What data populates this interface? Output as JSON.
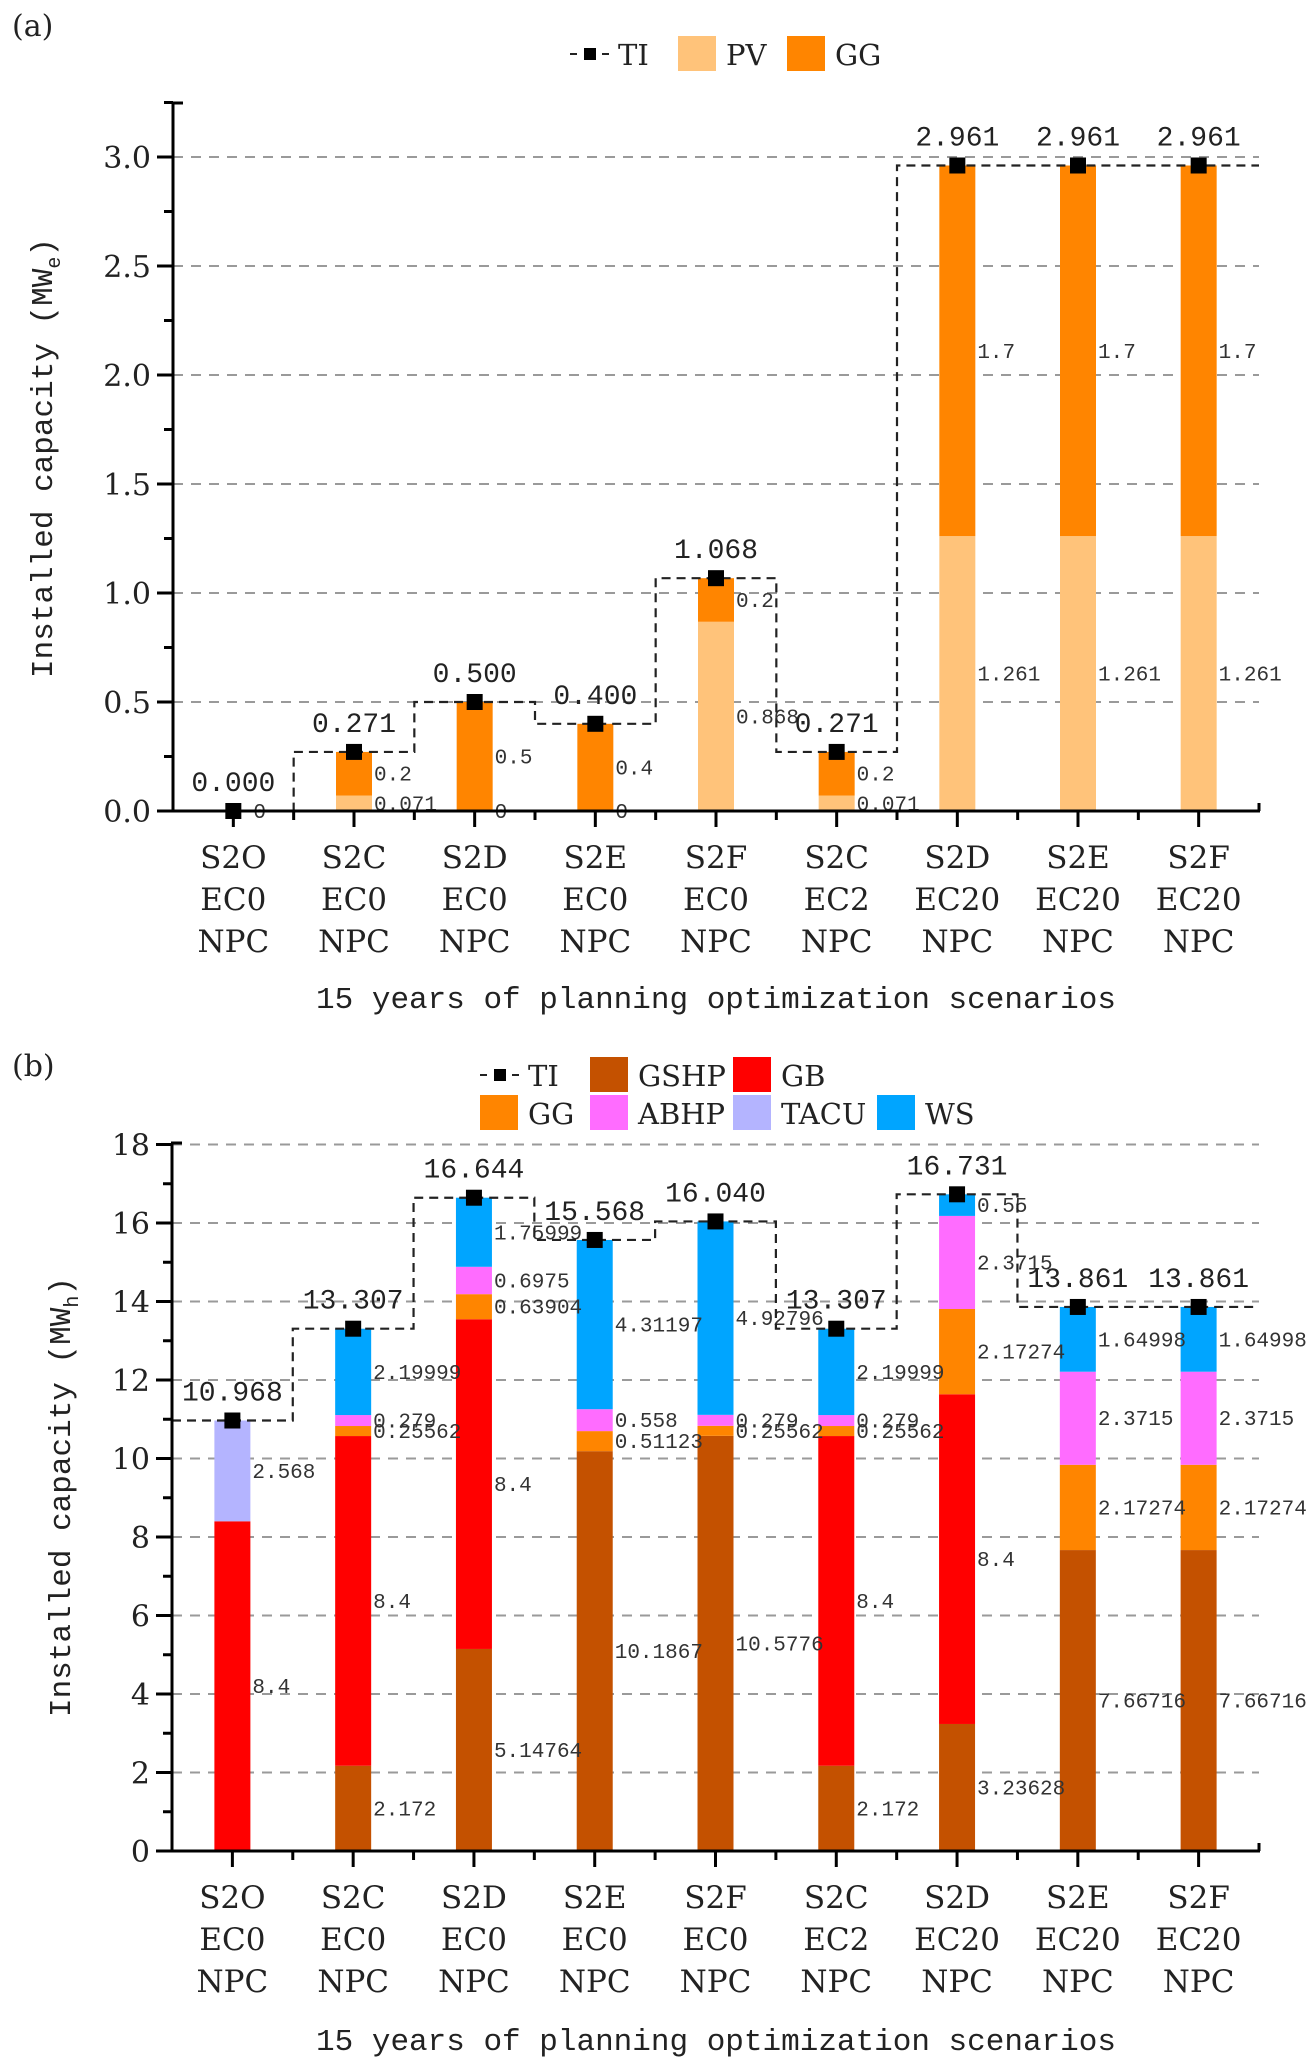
{
  "chart_data": [
    {
      "panel": "(a)",
      "type": "bar",
      "stacked": true,
      "title": "",
      "xlabel": "15 years of planning optimization scenarios",
      "ylabel": "Installed capacity (MW",
      "ylabel_sub": "e",
      "ylabel_close": ")",
      "ylim": [
        0,
        3.25
      ],
      "yticks": [
        0.0,
        0.5,
        1.0,
        1.5,
        2.0,
        2.5,
        3.0
      ],
      "ytick_labels": [
        "0.0",
        "0.5",
        "1.0",
        "1.5",
        "2.0",
        "2.5",
        "3.0"
      ],
      "grid": true,
      "legend_position": "top-center",
      "categories": [
        [
          "S2O",
          "EC0",
          "NPC"
        ],
        [
          "S2C",
          "EC0",
          "NPC"
        ],
        [
          "S2D",
          "EC0",
          "NPC"
        ],
        [
          "S2E",
          "EC0",
          "NPC"
        ],
        [
          "S2F",
          "EC0",
          "NPC"
        ],
        [
          "S2C",
          "EC2",
          "NPC"
        ],
        [
          "S2D",
          "EC20",
          "NPC"
        ],
        [
          "S2E",
          "EC20",
          "NPC"
        ],
        [
          "S2F",
          "EC20",
          "NPC"
        ]
      ],
      "series": [
        {
          "name": "PV",
          "color": "#FFC37A",
          "values": [
            0,
            0.071,
            0,
            0,
            0.868,
            0.071,
            1.261,
            1.261,
            1.261
          ],
          "labels": [
            "",
            "0.071",
            "0",
            "0",
            "0.868",
            "0.071",
            "1.261",
            "1.261",
            "1.261"
          ]
        },
        {
          "name": "GG",
          "color": "#FF8500",
          "values": [
            0,
            0.2,
            0.5,
            0.4,
            0.2,
            0.2,
            1.7,
            1.7,
            1.7
          ],
          "labels": [
            "0",
            "0.2",
            "0.5",
            "0.4",
            "0.2",
            "0.2",
            "1.7",
            "1.7",
            "1.7"
          ]
        }
      ],
      "line": {
        "name": "TI",
        "style": "dashed-step",
        "marker": "square",
        "color": "#000000",
        "values": [
          0.0,
          0.271,
          0.5,
          0.4,
          1.068,
          0.271,
          2.961,
          2.961,
          2.961
        ],
        "labels": [
          "0.000",
          "0.271",
          "0.500",
          "0.400",
          "1.068",
          "0.271",
          "2.961",
          "2.961",
          "2.961"
        ]
      },
      "legend": [
        {
          "name": "TI",
          "kind": "line"
        },
        {
          "name": "PV",
          "kind": "swatch",
          "color": "#FFC37A"
        },
        {
          "name": "GG",
          "kind": "swatch",
          "color": "#FF8500"
        }
      ]
    },
    {
      "panel": "(b)",
      "type": "bar",
      "stacked": true,
      "title": "",
      "xlabel": "15 years of planning optimization scenarios",
      "ylabel": "Installed capacity (MW",
      "ylabel_sub": "h",
      "ylabel_close": ")",
      "ylim": [
        0,
        18
      ],
      "yticks": [
        0,
        2,
        4,
        6,
        8,
        10,
        12,
        14,
        16,
        18
      ],
      "ytick_labels": [
        "0",
        "2",
        "4",
        "6",
        "8",
        "10",
        "12",
        "14",
        "16",
        "18"
      ],
      "grid": true,
      "legend_position": "top-center",
      "categories": [
        [
          "S2O",
          "EC0",
          "NPC"
        ],
        [
          "S2C",
          "EC0",
          "NPC"
        ],
        [
          "S2D",
          "EC0",
          "NPC"
        ],
        [
          "S2E",
          "EC0",
          "NPC"
        ],
        [
          "S2F",
          "EC0",
          "NPC"
        ],
        [
          "S2C",
          "EC2",
          "NPC"
        ],
        [
          "S2D",
          "EC20",
          "NPC"
        ],
        [
          "S2E",
          "EC20",
          "NPC"
        ],
        [
          "S2F",
          "EC20",
          "NPC"
        ]
      ],
      "series": [
        {
          "name": "GSHP",
          "color": "#C45100",
          "values": [
            0,
            2.172,
            5.14764,
            10.1867,
            10.5776,
            2.172,
            3.23628,
            7.66716,
            7.66716
          ],
          "labels": [
            "",
            "2.172",
            "5.14764",
            "10.1867",
            "10.5776",
            "2.172",
            "3.23628",
            "7.66716",
            "7.66716"
          ]
        },
        {
          "name": "GB",
          "color": "#FF0000",
          "values": [
            8.4,
            8.4,
            8.4,
            0,
            0,
            8.4,
            8.4,
            0,
            0
          ],
          "labels": [
            "8.4",
            "8.4",
            "8.4",
            "",
            "",
            "8.4",
            "8.4",
            "",
            ""
          ]
        },
        {
          "name": "GG",
          "color": "#FF8500",
          "values": [
            0,
            0.25562,
            0.63904,
            0.51123,
            0.25562,
            0.25562,
            2.17274,
            2.17274,
            2.17274
          ],
          "labels": [
            "",
            "0.25562",
            "0.63904",
            "0.51123",
            "0.25562",
            "0.25562",
            "2.17274",
            "2.17274",
            "2.17274"
          ]
        },
        {
          "name": "ABHP",
          "color": "#FF6CFF",
          "values": [
            0,
            0.279,
            0.6975,
            0.558,
            0.279,
            0.279,
            2.3715,
            2.3715,
            2.3715
          ],
          "labels": [
            "",
            "0.279",
            "0.6975",
            "0.558",
            "0.279",
            "0.279",
            "2.3715",
            "2.3715",
            "2.3715"
          ]
        },
        {
          "name": "TACU",
          "color": "#B4B4FF",
          "values": [
            2.568,
            0,
            0,
            0,
            0,
            0,
            0,
            0,
            0
          ],
          "labels": [
            "2.568",
            "",
            "",
            "",
            "",
            "",
            "",
            "",
            ""
          ]
        },
        {
          "name": "WS",
          "color": "#00A5FF",
          "values": [
            0,
            2.19999,
            1.75999,
            4.31197,
            4.92796,
            2.19999,
            0.55,
            1.64998,
            1.64998
          ],
          "labels": [
            "",
            "2.19999",
            "1.75999",
            "4.31197",
            "4.92796",
            "2.19999",
            "0.55",
            "1.64998",
            "1.64998"
          ]
        }
      ],
      "line": {
        "name": "TI",
        "style": "dashed-step",
        "marker": "square",
        "color": "#000000",
        "values": [
          10.968,
          13.307,
          16.644,
          15.568,
          16.04,
          13.307,
          16.731,
          13.861,
          13.861
        ],
        "labels": [
          "10.968",
          "13.307",
          "16.644",
          "15.568",
          "16.040",
          "13.307",
          "16.731",
          "13.861",
          "13.861"
        ]
      },
      "legend": [
        {
          "name": "TI",
          "kind": "line"
        },
        {
          "name": "GSHP",
          "kind": "swatch",
          "color": "#C45100"
        },
        {
          "name": "GB",
          "kind": "swatch",
          "color": "#FF0000"
        },
        {
          "name": "GG",
          "kind": "swatch",
          "color": "#FF8500"
        },
        {
          "name": "ABHP",
          "kind": "swatch",
          "color": "#FF6CFF"
        },
        {
          "name": "TACU",
          "kind": "swatch",
          "color": "#B4B4FF"
        },
        {
          "name": "WS",
          "kind": "swatch",
          "color": "#00A5FF"
        }
      ]
    }
  ]
}
